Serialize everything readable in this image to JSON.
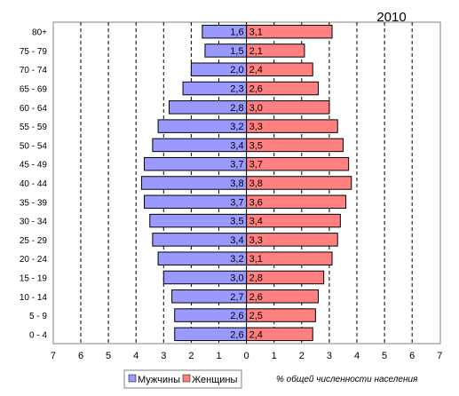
{
  "chart_data": {
    "type": "bar",
    "orientation": "horizontal",
    "title": "2010",
    "note": "% общей численности населения",
    "categories": [
      "0 - 4",
      "5 - 9",
      "10 - 14",
      "15 - 19",
      "20 - 24",
      "25 - 29",
      "30 - 34",
      "35 - 39",
      "40 - 44",
      "45 - 49",
      "50 - 54",
      "55 - 59",
      "60 - 64",
      "65 - 69",
      "70 - 74",
      "75 - 79",
      "80+"
    ],
    "x_ticks": [
      "7",
      "6",
      "5",
      "4",
      "3",
      "2",
      "1",
      "0",
      "1",
      "2",
      "3",
      "4",
      "5",
      "6",
      "7"
    ],
    "xlim": [
      -7,
      7
    ],
    "grid": "vertical dashed",
    "legend_position": "bottom-left",
    "series": [
      {
        "name": "Мужчины",
        "values": [
          2.6,
          2.6,
          2.7,
          3.0,
          3.2,
          3.4,
          3.5,
          3.7,
          3.8,
          3.7,
          3.4,
          3.2,
          2.8,
          2.3,
          2.0,
          1.5,
          1.6
        ],
        "labels": [
          "2,6",
          "2,6",
          "2,7",
          "3,0",
          "3,2",
          "3,4",
          "3,5",
          "3,7",
          "3,8",
          "3,7",
          "3,4",
          "3,2",
          "2,8",
          "2,3",
          "2,0",
          "1,5",
          "1,6"
        ]
      },
      {
        "name": "Женщины",
        "values": [
          2.4,
          2.5,
          2.6,
          2.8,
          3.1,
          3.3,
          3.4,
          3.6,
          3.8,
          3.7,
          3.5,
          3.3,
          3.0,
          2.6,
          2.4,
          2.1,
          3.1
        ],
        "labels": [
          "2,4",
          "2,5",
          "2,6",
          "2,8",
          "3,1",
          "3,3",
          "3,4",
          "3,6",
          "3,8",
          "3,7",
          "3,5",
          "3,3",
          "3,0",
          "2,6",
          "2,4",
          "2,1",
          "3,1"
        ]
      }
    ]
  },
  "colors": {
    "male": "#9999ff",
    "female": "#ff8080",
    "title": "#cc0000",
    "grid": "#000000",
    "frame": "#808080"
  }
}
